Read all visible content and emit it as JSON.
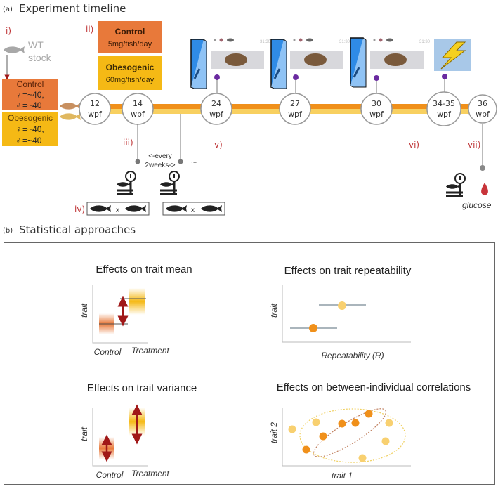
{
  "panel_a": {
    "label": "(a)",
    "title": "Experiment timeline",
    "steps": [
      "i)",
      "ii)",
      "iii)",
      "iv)",
      "v)",
      "vi)",
      "vii)"
    ],
    "wt_stock": [
      "WT",
      "stock"
    ],
    "groups": [
      {
        "name": "Control",
        "female": "=~40,",
        "male": "=~40",
        "color": "#e8793a"
      },
      {
        "name": "Obesogenic",
        "female": "=~40,",
        "male": "=~40",
        "color": "#f5b915"
      }
    ],
    "diets": [
      {
        "name": "Control",
        "dose": "5mg/fish/day",
        "color": "#e8793a"
      },
      {
        "name": "Obesogenic",
        "dose": "60mg/fish/day",
        "color": "#f5b915"
      }
    ],
    "timepoints": [
      {
        "n": "12",
        "u": "wpf"
      },
      {
        "n": "14",
        "u": "wpf"
      },
      {
        "n": "24",
        "u": "wpf"
      },
      {
        "n": "27",
        "u": "wpf"
      },
      {
        "n": "30",
        "u": "wpf"
      },
      {
        "n": "34-35",
        "u": "wpf"
      },
      {
        "n": "36",
        "u": "wpf"
      }
    ],
    "every_two_weeks": [
      "<-every",
      "2weeks->"
    ],
    "ellipsis": "...",
    "cross": "x",
    "screen_time": "31:30",
    "glucose": "glucose"
  },
  "panel_b": {
    "label": "(b)",
    "title": "Statistical approaches",
    "mean": {
      "title": "Effects on trait mean",
      "ylabel": "trait",
      "x1": "Control",
      "x2": "Treatment"
    },
    "repeat": {
      "title": "Effects on trait repeatability",
      "ylabel": "trait",
      "xlabel": "Repeatability (R)"
    },
    "variance": {
      "title": "Effects on trait variance",
      "ylabel": "trait",
      "x1": "Control",
      "x2": "Treatment"
    },
    "corr": {
      "title": "Effects on between-individual  correlations",
      "ylabel": "trait 2",
      "xlabel": "trait 1"
    }
  },
  "colors": {
    "control": "#e8793a",
    "obesogenic": "#f5b915",
    "arrow": "#a01818",
    "purple": "#6a2aa0",
    "tank": "#2f8be6"
  }
}
